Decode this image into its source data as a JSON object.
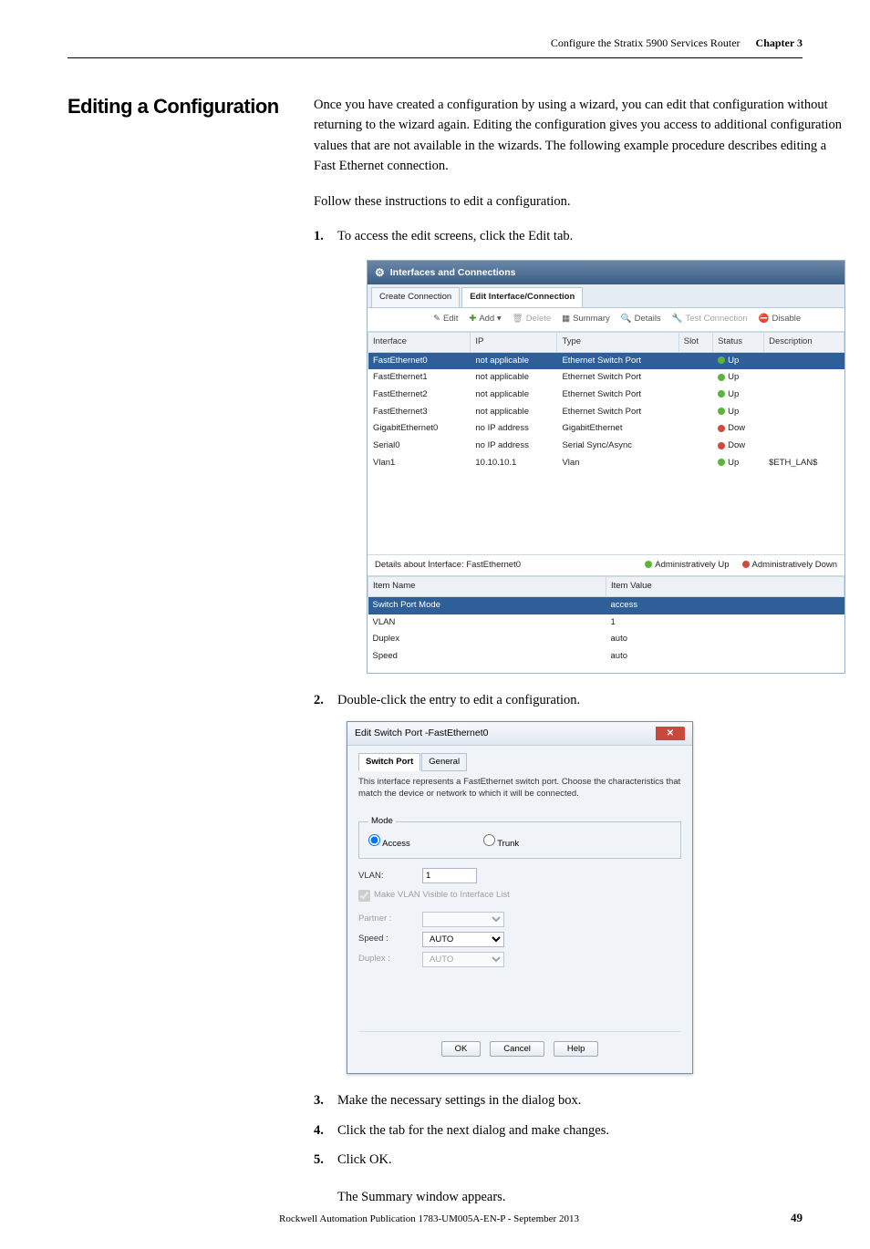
{
  "header": {
    "doc_section": "Configure the Stratix 5900 Services Router",
    "chapter_label": "Chapter 3"
  },
  "section_heading": "Editing a Configuration",
  "intro_para": "Once you have created a configuration by using a wizard, you can edit that configuration without returning to the wizard again. Editing the configuration gives you access to additional configuration values that are not available in the wizards. The following example procedure describes editing a Fast Ethernet connection.",
  "follow_para": "Follow these instructions to edit a configuration.",
  "steps": {
    "s1": "To access the edit screens, click the Edit tab.",
    "s2": "Double-click the entry to edit a configuration.",
    "s3": "Make the necessary settings in the dialog box.",
    "s4": "Click the tab for the next dialog and make changes.",
    "s5": "Click OK.",
    "after5": "The Summary window appears."
  },
  "panel": {
    "title": "Interfaces and Connections",
    "tabs": {
      "create": "Create Connection",
      "edit": "Edit Interface/Connection"
    },
    "toolbar": {
      "edit": "Edit",
      "add": "Add ▾",
      "delete": "Delete",
      "summary": "Summary",
      "details": "Details",
      "test": "Test Connection",
      "disable": "Disable"
    },
    "cols": {
      "iface": "Interface",
      "ip": "IP",
      "type": "Type",
      "slot": "Slot",
      "status": "Status",
      "desc": "Description"
    },
    "status_colors": {
      "up": "#5bb53a",
      "down": "#d24a3c"
    },
    "rows": [
      {
        "iface": "FastEthernet0",
        "ip": "not applicable",
        "type": "Ethernet Switch Port",
        "slot": "",
        "status": "Up",
        "status_color": "#5bb53a",
        "desc": "",
        "selected": true
      },
      {
        "iface": "FastEthernet1",
        "ip": "not applicable",
        "type": "Ethernet Switch Port",
        "slot": "",
        "status": "Up",
        "status_color": "#5bb53a",
        "desc": ""
      },
      {
        "iface": "FastEthernet2",
        "ip": "not applicable",
        "type": "Ethernet Switch Port",
        "slot": "",
        "status": "Up",
        "status_color": "#5bb53a",
        "desc": ""
      },
      {
        "iface": "FastEthernet3",
        "ip": "not applicable",
        "type": "Ethernet Switch Port",
        "slot": "",
        "status": "Up",
        "status_color": "#5bb53a",
        "desc": ""
      },
      {
        "iface": "GigabitEthernet0",
        "ip": "no IP address",
        "type": "GigabitEthernet",
        "slot": "",
        "status": "Dow",
        "status_color": "#d24a3c",
        "desc": ""
      },
      {
        "iface": "Serial0",
        "ip": "no IP address",
        "type": "Serial Sync/Async",
        "slot": "",
        "status": "Dow",
        "status_color": "#d24a3c",
        "desc": ""
      },
      {
        "iface": "Vlan1",
        "ip": "10.10.10.1",
        "type": "Vlan",
        "slot": "",
        "status": "Up",
        "status_color": "#5bb53a",
        "desc": "$ETH_LAN$"
      }
    ],
    "details_label": "Details about Interface: FastEthernet0",
    "legend": {
      "up": "Administratively Up",
      "down": "Administratively Down"
    },
    "details_cols": {
      "name": "Item Name",
      "value": "Item Value"
    },
    "details_rows": [
      {
        "name": "Switch Port Mode",
        "value": "access",
        "selected": true
      },
      {
        "name": "VLAN",
        "value": "1"
      },
      {
        "name": "Duplex",
        "value": "auto"
      },
      {
        "name": "Speed",
        "value": "auto"
      }
    ]
  },
  "dialog": {
    "title": "Edit Switch Port -FastEthernet0",
    "tabs": {
      "switchport": "Switch Port",
      "general": "General"
    },
    "desc": "This interface represents a FastEthernet switch port. Choose the characteristics that match the device or network to which it will be connected.",
    "mode_legend": "Mode",
    "mode_access": "Access",
    "mode_trunk": "Trunk",
    "vlan_label": "VLAN:",
    "vlan_value": "1",
    "chk_label": "Make VLAN Visible to Interface List",
    "partner_label": "Partner :",
    "speed_label": "Speed :",
    "speed_value": "AUTO",
    "duplex_label": "Duplex :",
    "duplex_value": "AUTO",
    "btn_ok": "OK",
    "btn_cancel": "Cancel",
    "btn_help": "Help"
  },
  "footer": {
    "publication": "Rockwell Automation Publication 1783-UM005A-EN-P - September 2013",
    "page": "49"
  }
}
